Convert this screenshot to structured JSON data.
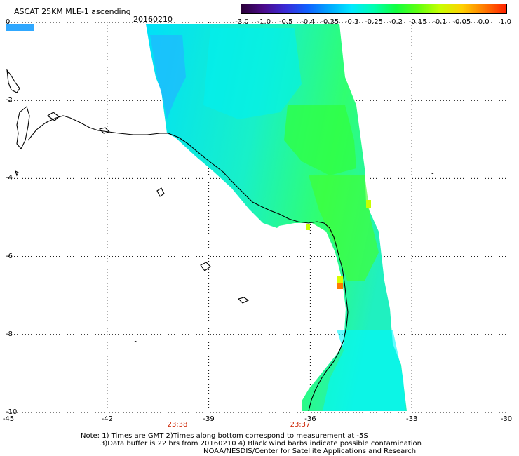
{
  "header": {
    "product_title": "ASCAT 25KM MLE-1 ascending",
    "date": "20160210"
  },
  "colorbar": {
    "labels": [
      "-3.0",
      "-1.0",
      "-0.5",
      "-0.4",
      "-0.35",
      "-0.3",
      "-0.25",
      "-0.2",
      "-0.15",
      "-0.1",
      "-0.05",
      "0.0",
      "1.0"
    ],
    "colors": [
      "#2a0038",
      "#4b0a8a",
      "#3a2ad6",
      "#1060ff",
      "#00a8ff",
      "#00e8ff",
      "#00ffb0",
      "#10ff40",
      "#60ff10",
      "#c8ff00",
      "#ffd000",
      "#ff7a00",
      "#ff2000"
    ]
  },
  "axes": {
    "lat_labels": [
      "0",
      "-2",
      "-4",
      "-6",
      "-8",
      "-10"
    ],
    "lon_labels": [
      "-45",
      "-42",
      "-39",
      "-36",
      "-33",
      "-30"
    ]
  },
  "times": [
    "23:38",
    "23:37"
  ],
  "notes": {
    "line1": "Note: 1) Times are GMT 2)Times along bottom correspond to measurement at -5S",
    "line2": "3)Data buffer is 22 hrs from 20160210 4) Black wind barbs indicate possible contamination",
    "line3": "NOAA/NESDIS/Center for Satellite Applications and Research"
  },
  "colors": {
    "swath_main": "#22f0c0",
    "swath_cyan": "#00f0f0",
    "swath_green": "#30ff50",
    "swath_blue": "#10a8ff",
    "coast": "#000000",
    "grid": "#000000",
    "time_label": "#cc2200"
  }
}
